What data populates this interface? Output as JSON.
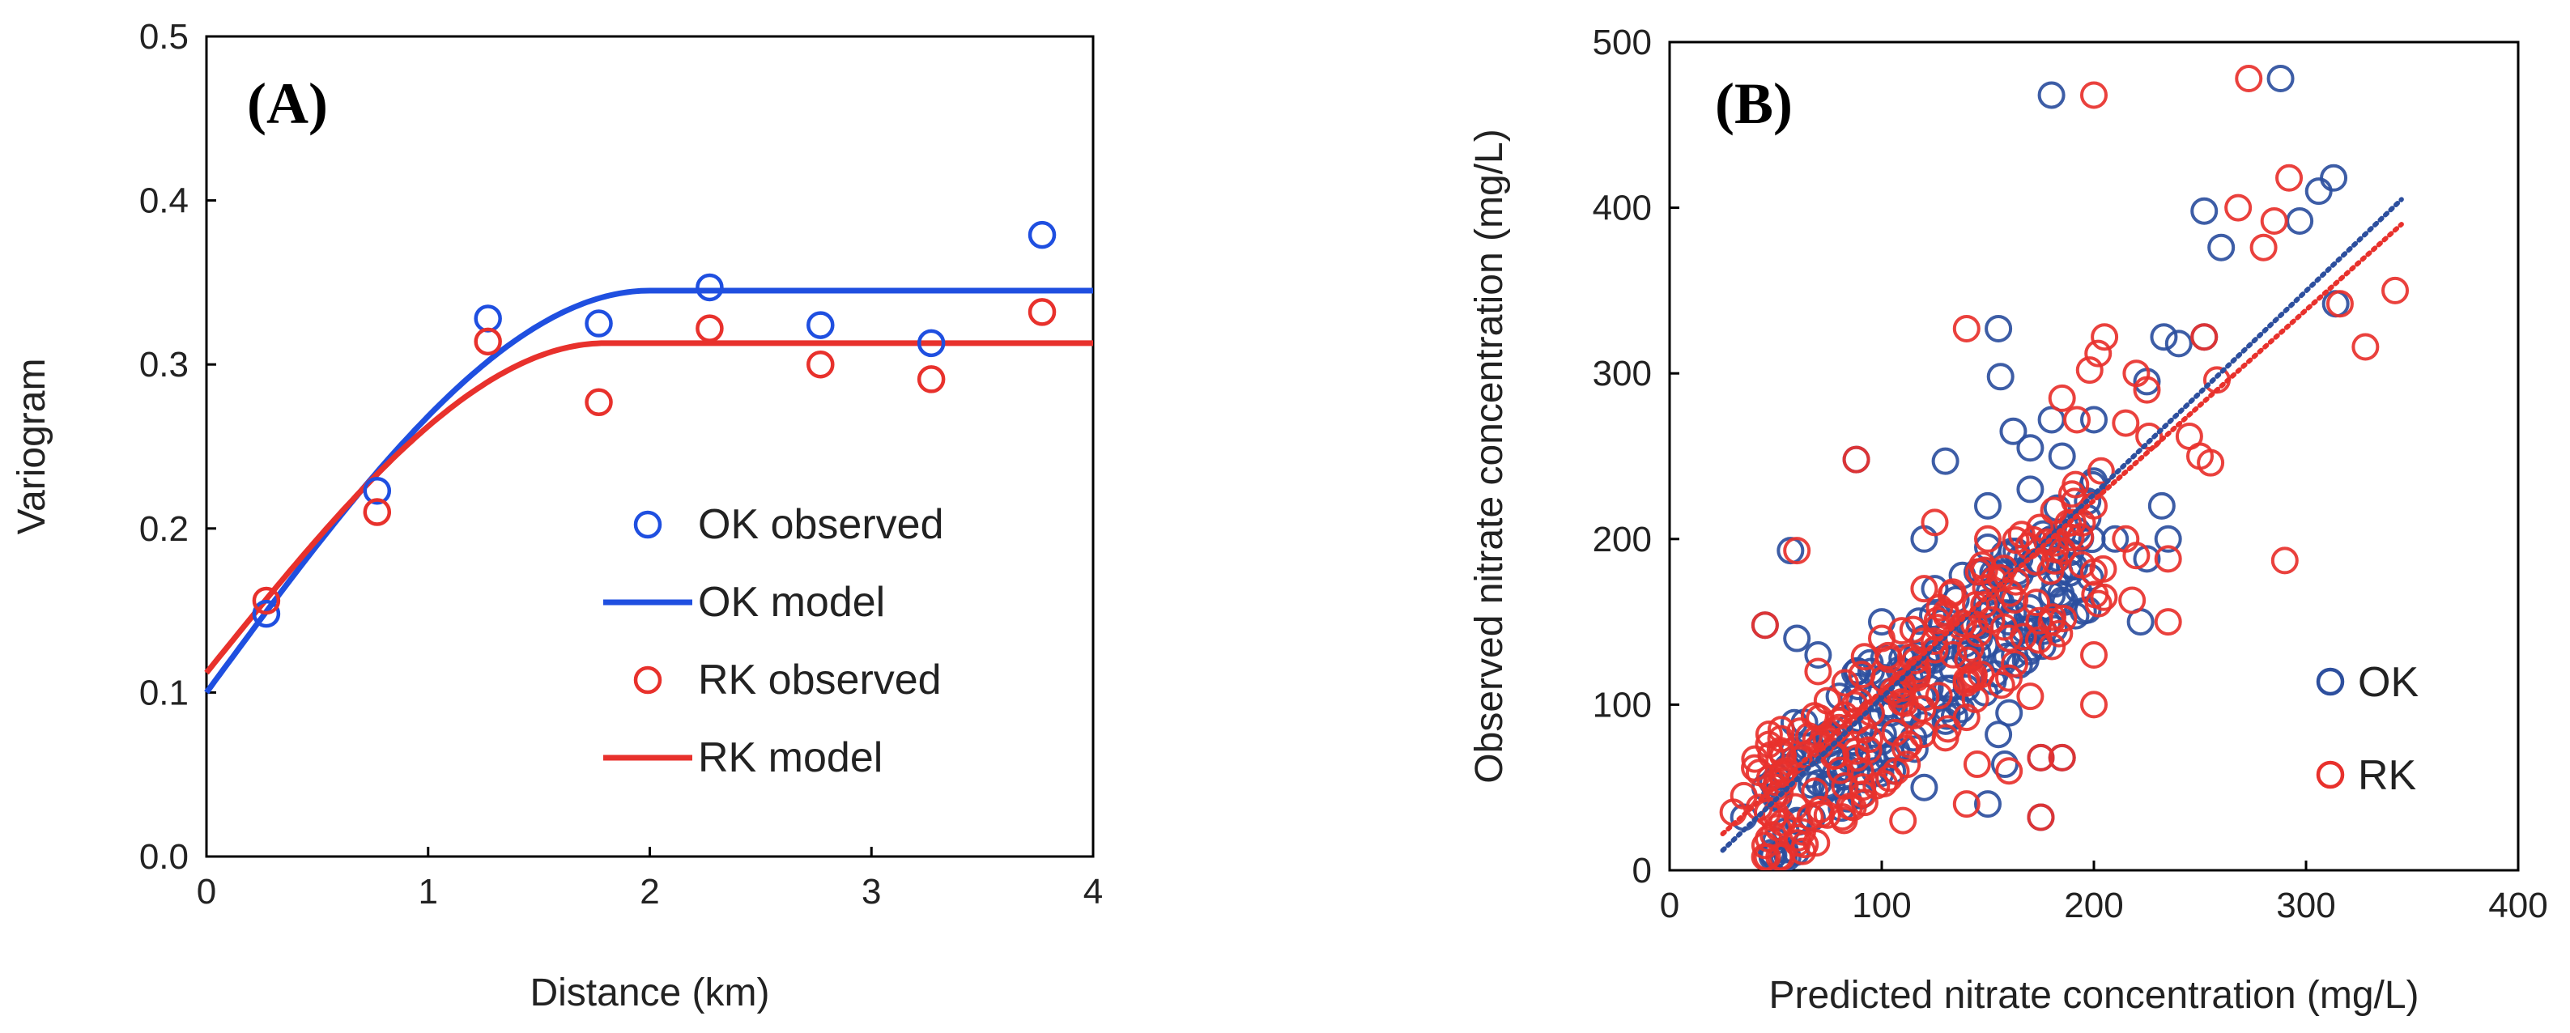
{
  "chart_data": [
    {
      "type": "scatter",
      "panel_label": "(A)",
      "xlabel": "Distance (km)",
      "ylabel": "Variogram",
      "xlim": [
        0,
        4
      ],
      "ylim": [
        0,
        0.5
      ],
      "xticks": [
        "0",
        "1",
        "2",
        "3",
        "4"
      ],
      "yticks": [
        "0.0",
        "0.1",
        "0.2",
        "0.3",
        "0.4",
        "0.5"
      ],
      "grid": false,
      "legend_position": "center-right",
      "series": [
        {
          "name": "OK observed",
          "kind": "points",
          "color": "#1f4fe0",
          "x": [
            0.27,
            0.77,
            1.27,
            1.77,
            2.27,
            2.77,
            3.27,
            3.77
          ],
          "y": [
            0.148,
            0.223,
            0.328,
            0.325,
            0.347,
            0.324,
            0.313,
            0.379
          ]
        },
        {
          "name": "OK model",
          "kind": "spherical",
          "color": "#1f4fe0",
          "nugget": 0.1,
          "sill": 0.345,
          "range": 2.0
        },
        {
          "name": "RK observed",
          "kind": "points",
          "color": "#e8312c",
          "x": [
            0.27,
            0.77,
            1.27,
            1.77,
            2.27,
            2.77,
            3.27,
            3.77
          ],
          "y": [
            0.156,
            0.21,
            0.314,
            0.277,
            0.322,
            0.3,
            0.291,
            0.332
          ]
        },
        {
          "name": "RK model",
          "kind": "spherical",
          "color": "#e8312c",
          "nugget": 0.112,
          "sill": 0.313,
          "range": 1.8
        }
      ]
    },
    {
      "type": "scatter",
      "panel_label": "(B)",
      "xlabel": "Predicted nitrate concentration (mg/L)",
      "ylabel": "Observed nitrate concentration (mg/L)",
      "xlim": [
        0,
        400
      ],
      "ylim": [
        0,
        500
      ],
      "xticks": [
        "0",
        "100",
        "200",
        "300",
        "400"
      ],
      "yticks": [
        "0",
        "100",
        "200",
        "300",
        "400",
        "500"
      ],
      "grid": false,
      "legend_position": "bottom-right",
      "series": [
        {
          "name": "OK",
          "color": "#2d4f9e",
          "trendline": {
            "x0": 25,
            "y0": 12,
            "x1": 345,
            "y1": 405
          },
          "points": [
            [
              180,
              468
            ],
            [
              288,
              478
            ],
            [
              313,
              418
            ],
            [
              306,
              410
            ],
            [
              252,
              398
            ],
            [
              297,
              392
            ],
            [
              260,
              376
            ],
            [
              314,
              342
            ],
            [
              252,
              322
            ],
            [
              240,
              318
            ],
            [
              233,
              322
            ],
            [
              155,
              327
            ],
            [
              156,
              298
            ],
            [
              225,
              295
            ],
            [
              180,
              272
            ],
            [
              200,
              272
            ],
            [
              162,
              265
            ],
            [
              170,
              255
            ],
            [
              185,
              250
            ],
            [
              130,
              247
            ],
            [
              88,
              248
            ],
            [
              232,
              220
            ],
            [
              210,
              200
            ],
            [
              235,
              200
            ],
            [
              57,
              193
            ],
            [
              150,
              195
            ],
            [
              165,
              188
            ],
            [
              225,
              188
            ],
            [
              120,
              200
            ],
            [
              138,
              178
            ],
            [
              45,
              148
            ],
            [
              185,
              163
            ],
            [
              155,
              163
            ],
            [
              222,
              150
            ],
            [
              100,
              150
            ],
            [
              60,
              140
            ],
            [
              70,
              130
            ],
            [
              110,
              120
            ],
            [
              80,
              105
            ],
            [
              160,
              95
            ],
            [
              155,
              82
            ],
            [
              175,
              68
            ],
            [
              158,
              64
            ],
            [
              185,
              68
            ],
            [
              78,
              58
            ],
            [
              90,
              45
            ],
            [
              120,
              50
            ],
            [
              175,
              32
            ],
            [
              150,
              40
            ],
            [
              60,
              30
            ],
            [
              35,
              32
            ],
            [
              45,
              50
            ],
            [
              100,
              95
            ],
            [
              140,
              110
            ],
            [
              170,
              230
            ],
            [
              125,
              170
            ],
            [
              150,
              220
            ],
            [
              180,
              200
            ],
            [
              115,
              80
            ],
            [
              75,
              80
            ],
            [
              130,
              90
            ],
            [
              105,
              60
            ],
            [
              65,
              70
            ],
            [
              120,
              140
            ],
            [
              95,
              120
            ],
            [
              160,
              150
            ],
            [
              140,
              130
            ],
            [
              145,
              180
            ],
            [
              200,
              235
            ]
          ],
          "cluster": {
            "n": 170,
            "x_min": 45,
            "x_max": 200,
            "spread": 40,
            "seed": 11
          }
        },
        {
          "name": "RK",
          "color": "#e8312c",
          "trendline": {
            "x0": 25,
            "y0": 22,
            "x1": 345,
            "y1": 390
          },
          "points": [
            [
              200,
              468
            ],
            [
              273,
              478
            ],
            [
              292,
              418
            ],
            [
              268,
              400
            ],
            [
              285,
              392
            ],
            [
              280,
              376
            ],
            [
              342,
              350
            ],
            [
              316,
              342
            ],
            [
              328,
              316
            ],
            [
              252,
              322
            ],
            [
              258,
              296
            ],
            [
              205,
              322
            ],
            [
              202,
              312
            ],
            [
              198,
              302
            ],
            [
              220,
              300
            ],
            [
              225,
              290
            ],
            [
              140,
              327
            ],
            [
              185,
              285
            ],
            [
              192,
              272
            ],
            [
              215,
              270
            ],
            [
              245,
              262
            ],
            [
              250,
              250
            ],
            [
              255,
              246
            ],
            [
              88,
              248
            ],
            [
              226,
              262
            ],
            [
              200,
              220
            ],
            [
              190,
              210
            ],
            [
              215,
              200
            ],
            [
              220,
              190
            ],
            [
              235,
              188
            ],
            [
              290,
              187
            ],
            [
              125,
              210
            ],
            [
              60,
              193
            ],
            [
              45,
              148
            ],
            [
              218,
              163
            ],
            [
              235,
              150
            ],
            [
              200,
              130
            ],
            [
              200,
              100
            ],
            [
              170,
              105
            ],
            [
              175,
              68
            ],
            [
              185,
              68
            ],
            [
              145,
              64
            ],
            [
              175,
              32
            ],
            [
              140,
              40
            ],
            [
              110,
              30
            ],
            [
              45,
              15
            ],
            [
              30,
              35
            ],
            [
              35,
              45
            ],
            [
              50,
              50
            ],
            [
              95,
              95
            ],
            [
              140,
              115
            ],
            [
              160,
              140
            ],
            [
              120,
              170
            ],
            [
              150,
              200
            ],
            [
              100,
              140
            ],
            [
              70,
              120
            ],
            [
              130,
              80
            ],
            [
              90,
              60
            ],
            [
              160,
              60
            ],
            [
              200,
              180
            ],
            [
              180,
              150
            ],
            [
              110,
              110
            ],
            [
              80,
              90
            ]
          ],
          "cluster": {
            "n": 180,
            "x_min": 40,
            "x_max": 205,
            "spread": 45,
            "seed": 23
          }
        }
      ]
    }
  ]
}
